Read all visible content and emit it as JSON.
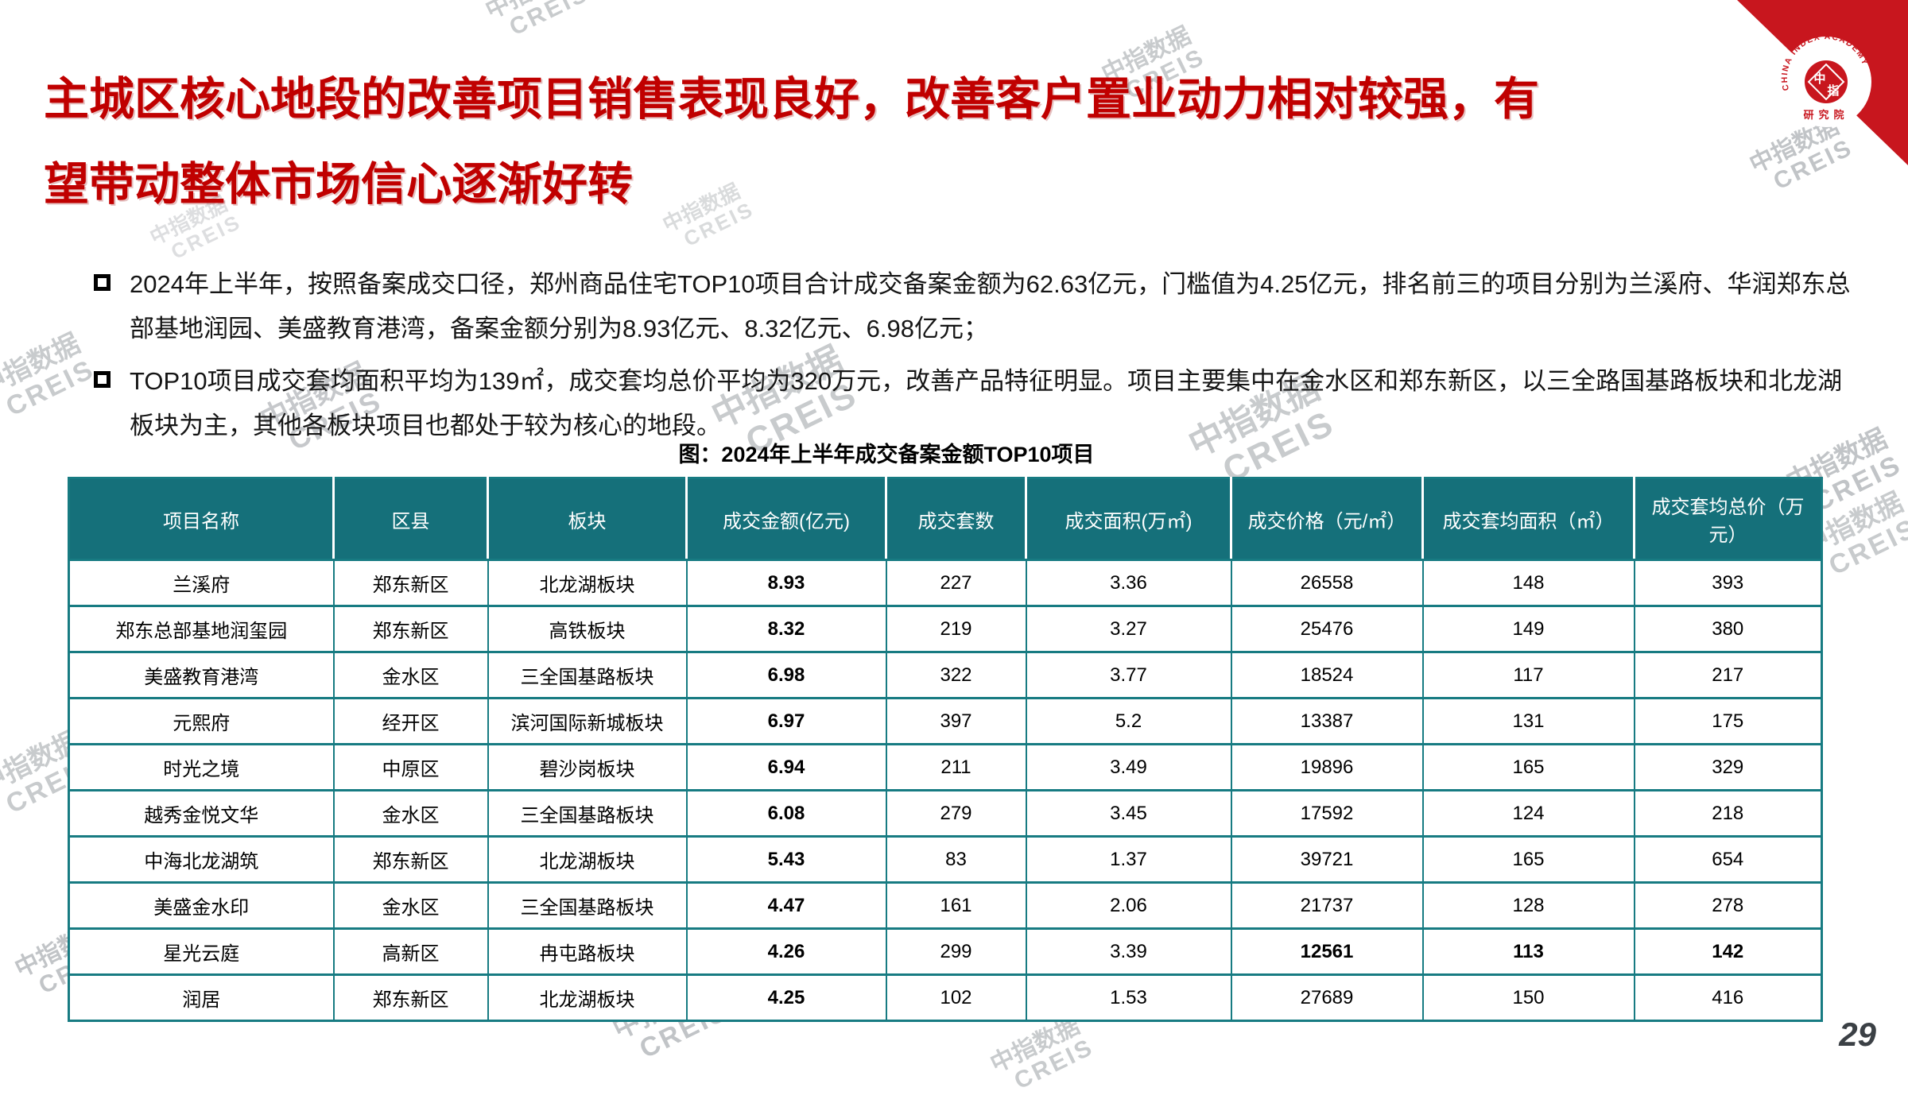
{
  "page": {
    "title_line1": "主城区核心地段的改善项目销售表现良好，改善客户置业动力相对较强，有",
    "title_line2": "望带动整体市场信心逐渐好转",
    "page_number": "29"
  },
  "logo": {
    "org_en": "CHINA INDEX ACADEMY",
    "org_zh": "研究院",
    "seal_char1": "中",
    "seal_char2": "指",
    "ribbon_color": "#C8161E"
  },
  "watermark": {
    "line1": "中指数据",
    "line2": "CREIS"
  },
  "bullets": [
    "2024年上半年，按照备案成交口径，郑州商品住宅TOP10项目合计成交备案金额为62.63亿元，门槛值为4.25亿元，排名前三的项目分别为兰溪府、华润郑东总部基地润园、美盛教育港湾，备案金额分别为8.93亿元、8.32亿元、6.98亿元；",
    "TOP10项目成交套均面积平均为139㎡，成交套均总价平均为320万元，改善产品特征明显。项目主要集中在金水区和郑东新区，以三全路国基路板块和北龙湖板块为主，其他各板块项目也都处于较为核心的地段。"
  ],
  "table": {
    "caption": "图：2024年上半年成交备案金额TOP10项目",
    "header_bg": "#15707A",
    "border_color": "#177B82",
    "columns": [
      "项目名称",
      "区县",
      "板块",
      "成交金额(亿元)",
      "成交套数",
      "成交面积(万㎡)",
      "成交价格（元/㎡）",
      "成交套均面积（㎡）",
      "成交套均总价（万元）"
    ],
    "rows": [
      [
        "兰溪府",
        "郑东新区",
        "北龙湖板块",
        "8.93",
        "227",
        "3.36",
        "26558",
        "148",
        "393"
      ],
      [
        "郑东总部基地润玺园",
        "郑东新区",
        "高铁板块",
        "8.32",
        "219",
        "3.27",
        "25476",
        "149",
        "380"
      ],
      [
        "美盛教育港湾",
        "金水区",
        "三全国基路板块",
        "6.98",
        "322",
        "3.77",
        "18524",
        "117",
        "217"
      ],
      [
        "元熙府",
        "经开区",
        "滨河国际新城板块",
        "6.97",
        "397",
        "5.2",
        "13387",
        "131",
        "175"
      ],
      [
        "时光之境",
        "中原区",
        "碧沙岗板块",
        "6.94",
        "211",
        "3.49",
        "19896",
        "165",
        "329"
      ],
      [
        "越秀金悦文华",
        "金水区",
        "三全国基路板块",
        "6.08",
        "279",
        "3.45",
        "17592",
        "124",
        "218"
      ],
      [
        "中海北龙湖筑",
        "郑东新区",
        "北龙湖板块",
        "5.43",
        "83",
        "1.37",
        "39721",
        "165",
        "654"
      ],
      [
        "美盛金水印",
        "金水区",
        "三全国基路板块",
        "4.47",
        "161",
        "2.06",
        "21737",
        "128",
        "278"
      ],
      [
        "星光云庭",
        "高新区",
        "冉屯路板块",
        "4.26",
        "299",
        "3.39",
        "12561",
        "113",
        "142"
      ],
      [
        "润居",
        "郑东新区",
        "北龙湖板块",
        "4.25",
        "102",
        "1.53",
        "27689",
        "150",
        "416"
      ]
    ],
    "bold_columns": [
      3
    ],
    "bold_cells": [
      [
        8,
        6
      ],
      [
        8,
        7
      ],
      [
        8,
        8
      ]
    ]
  }
}
